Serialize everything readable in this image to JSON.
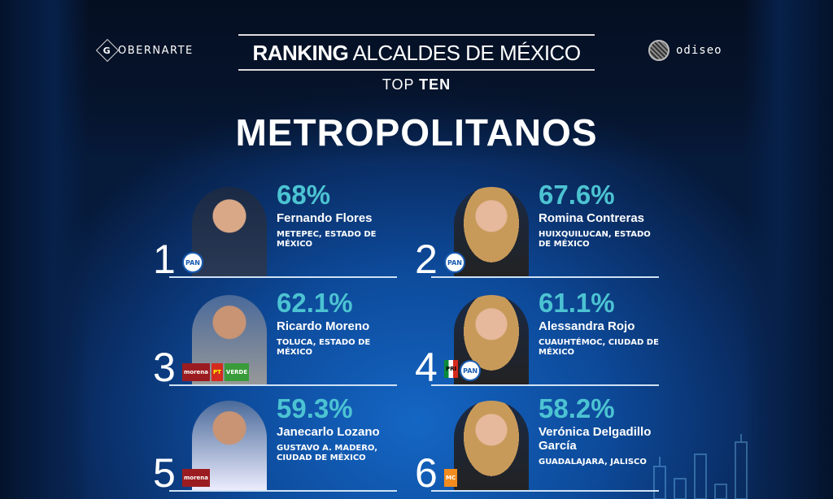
{
  "header": {
    "logo_left": "GOBERNARTE",
    "logo_right": "odiseo",
    "title_bold": "RANKING",
    "title_rest": " ALCALDES DE MÉXICO",
    "subtitle_light": "TOP ",
    "subtitle_bold": "TEN",
    "category": "METROPOLITANOS"
  },
  "colors": {
    "percent": "#4cc3d2",
    "background": "#0d4a9a"
  },
  "ranking": [
    {
      "rank": "1",
      "percent": "68%",
      "name": "Fernando Flores",
      "location": "METEPEC, ESTADO DE MÉXICO",
      "parties": [
        "PAN"
      ]
    },
    {
      "rank": "2",
      "percent": "67.6%",
      "name": "Romina Contreras",
      "location": "HUIXQUILUCAN, ESTADO DE MÉXICO",
      "parties": [
        "PAN"
      ]
    },
    {
      "rank": "3",
      "percent": "62.1%",
      "name": "Ricardo Moreno",
      "location": "TOLUCA, ESTADO DE MÉXICO",
      "parties": [
        "morena",
        "PT",
        "VERDE"
      ]
    },
    {
      "rank": "4",
      "percent": "61.1%",
      "name": "Alessandra Rojo",
      "location": "CUAUHTÉMOC, CIUDAD DE MÉXICO",
      "parties": [
        "PRI",
        "PAN"
      ]
    },
    {
      "rank": "5",
      "percent": "59.3%",
      "name": "Janecarlo Lozano",
      "location": "GUSTAVO A. MADERO, CIUDAD DE MÉXICO",
      "parties": [
        "morena"
      ]
    },
    {
      "rank": "6",
      "percent": "58.2%",
      "name": "Verónica Delgadillo García",
      "location": "GUADALAJARA, JALISCO",
      "parties": [
        "MC"
      ]
    }
  ]
}
